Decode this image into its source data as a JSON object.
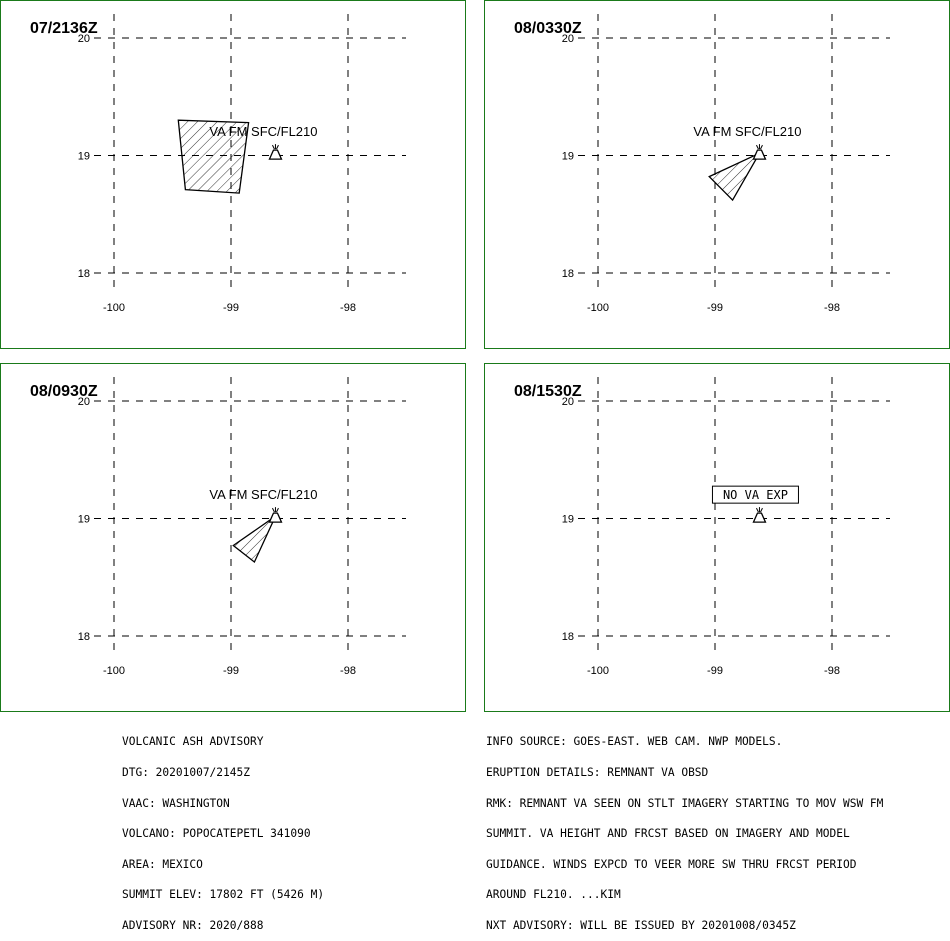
{
  "panels": [
    {
      "time": "07/2136Z",
      "lat_ticks": [
        "20",
        "19",
        "18"
      ],
      "lon_ticks": [
        "-100",
        "-99",
        "-98"
      ],
      "label": "VA FM SFC/FL210",
      "ash_polygon": [
        [
          -99.45,
          19.3
        ],
        [
          -98.85,
          19.28
        ],
        [
          -98.93,
          18.68
        ],
        [
          -99.39,
          18.71
        ]
      ],
      "volcano": [
        -98.62,
        19.02
      ],
      "no_va_label": ""
    },
    {
      "time": "08/0330Z",
      "lat_ticks": [
        "20",
        "19",
        "18"
      ],
      "lon_ticks": [
        "-100",
        "-99",
        "-98"
      ],
      "label": "VA FM SFC/FL210",
      "ash_polygon": [
        [
          -98.62,
          19.02
        ],
        [
          -99.05,
          18.82
        ],
        [
          -98.85,
          18.62
        ]
      ],
      "volcano": [
        -98.62,
        19.02
      ],
      "no_va_label": ""
    },
    {
      "time": "08/0930Z",
      "lat_ticks": [
        "20",
        "19",
        "18"
      ],
      "lon_ticks": [
        "-100",
        "-99",
        "-98"
      ],
      "label": "VA FM SFC/FL210",
      "ash_polygon": [
        [
          -98.62,
          19.02
        ],
        [
          -98.98,
          18.77
        ],
        [
          -98.8,
          18.63
        ]
      ],
      "volcano": [
        -98.62,
        19.02
      ],
      "no_va_label": ""
    },
    {
      "time": "08/1530Z",
      "lat_ticks": [
        "20",
        "19",
        "18"
      ],
      "lon_ticks": [
        "-100",
        "-99",
        "-98"
      ],
      "label": "",
      "ash_polygon": [],
      "volcano": [
        -98.62,
        19.02
      ],
      "no_va_label": "NO VA EXP"
    }
  ],
  "advisory_left": [
    "VOLCANIC ASH ADVISORY",
    "DTG: 20201007/2145Z",
    "VAAC: WASHINGTON",
    "VOLCANO: POPOCATEPETL 341090",
    "AREA: MEXICO",
    "SUMMIT ELEV: 17802 FT (5426 M)",
    "ADVISORY NR: 2020/888"
  ],
  "advisory_right": [
    "INFO SOURCE: GOES-EAST. WEB CAM. NWP MODELS.",
    "ERUPTION DETAILS: REMNANT VA OBSD",
    "RMK: REMNANT VA SEEN ON STLT IMAGERY STARTING TO MOV WSW FM",
    "SUMMIT. VA HEIGHT AND FRCST BASED ON IMAGERY AND MODEL",
    "GUIDANCE. WINDS EXPCD TO VEER MORE SW THRU FRCST PERIOD",
    "AROUND FL210. ...KIM",
    "NXT ADVISORY: WILL BE ISSUED BY 20201008/0345Z"
  ],
  "colors": {
    "frame": "#1a7a1a",
    "ink": "#000000"
  }
}
